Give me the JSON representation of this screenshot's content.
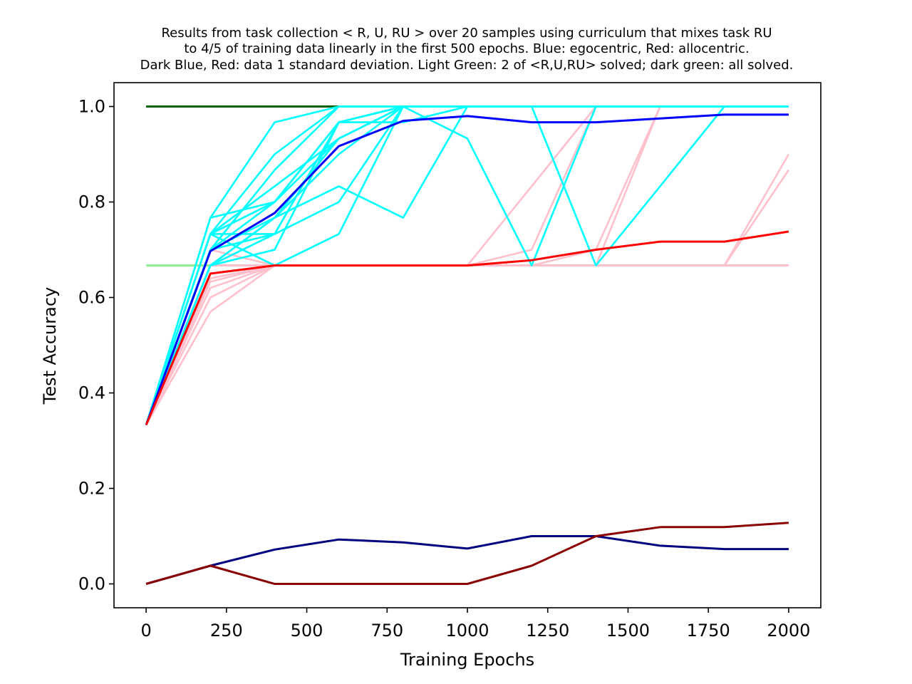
{
  "chart_data": {
    "type": "line",
    "title_lines": [
      "Results from task collection < R, U, RU > over 20 samples using curriculum that mixes task RU",
      "to 4/5 of training data  linearly in the first 500 epochs. Blue: egocentric, Red: allocentric.",
      "Dark Blue, Red: data 1 standard deviation.  Light Green: 2 of <R,U,RU> solved; dark green: all solved."
    ],
    "xlabel": "Training Epochs",
    "ylabel": "Test Accuracy",
    "xlim": [
      -100,
      2100
    ],
    "ylim": [
      -0.05,
      1.05
    ],
    "xticks": [
      0,
      250,
      500,
      750,
      1000,
      1250,
      1500,
      1750,
      2000
    ],
    "xtick_labels": [
      "0",
      "250",
      "500",
      "750",
      "1000",
      "1250",
      "1500",
      "1750",
      "2000"
    ],
    "yticks": [
      0.0,
      0.2,
      0.4,
      0.6,
      0.8,
      1.0
    ],
    "ytick_labels": [
      "0.0",
      "0.2",
      "0.4",
      "0.6",
      "0.8",
      "1.0"
    ],
    "grid": false,
    "x": [
      0,
      200,
      400,
      600,
      800,
      1000,
      1200,
      1400,
      1600,
      1800,
      2000
    ],
    "colors": {
      "all_solved": "#006400",
      "two_solved": "#90ee90",
      "allocentric_sample": "#ffc0cb",
      "egocentric_sample": "#00ffff",
      "egocentric_mean": "#0000ff",
      "allocentric_mean": "#ff0000",
      "egocentric_std": "#000080",
      "allocentric_std": "#8b0000"
    },
    "reference_lines": [
      {
        "color_key": "all_solved",
        "x": [
          0,
          600
        ],
        "y": [
          1.0,
          1.0
        ]
      },
      {
        "color_key": "two_solved",
        "x": [
          0,
          200
        ],
        "y": [
          0.667,
          0.667
        ]
      }
    ],
    "allocentric_samples": [
      [
        0.333,
        0.57,
        0.667,
        0.667,
        0.667,
        0.667,
        0.667,
        0.667,
        0.667,
        0.667,
        0.667
      ],
      [
        0.333,
        0.6,
        0.667,
        0.667,
        0.667,
        0.667,
        0.667,
        0.667,
        0.667,
        0.667,
        0.667
      ],
      [
        0.333,
        0.62,
        0.667,
        0.667,
        0.667,
        0.667,
        0.667,
        0.667,
        0.667,
        0.667,
        0.667
      ],
      [
        0.333,
        0.633,
        0.667,
        0.667,
        0.667,
        0.667,
        0.667,
        0.667,
        0.667,
        0.667,
        0.667
      ],
      [
        0.333,
        0.64,
        0.667,
        0.667,
        0.667,
        0.667,
        0.667,
        0.667,
        0.667,
        0.667,
        0.667
      ],
      [
        0.333,
        0.65,
        0.667,
        0.667,
        0.667,
        0.667,
        0.667,
        0.667,
        0.667,
        0.667,
        0.667
      ],
      [
        0.333,
        0.667,
        0.667,
        0.667,
        0.667,
        0.667,
        0.667,
        0.667,
        0.667,
        0.667,
        0.667
      ],
      [
        0.333,
        0.7,
        0.667,
        0.667,
        0.667,
        0.667,
        0.667,
        0.667,
        0.667,
        0.667,
        0.667
      ],
      [
        0.333,
        0.667,
        0.667,
        0.667,
        0.667,
        0.667,
        0.667,
        0.667,
        0.667,
        0.667,
        0.9
      ],
      [
        0.333,
        0.667,
        0.667,
        0.667,
        0.667,
        0.667,
        0.667,
        0.667,
        0.667,
        0.667,
        0.867
      ],
      [
        0.333,
        0.667,
        0.667,
        0.667,
        0.667,
        0.667,
        0.667,
        0.667,
        1.0,
        1.0,
        1.0
      ],
      [
        0.333,
        0.667,
        0.667,
        0.667,
        0.667,
        0.667,
        0.7,
        1.0,
        1.0,
        1.0,
        1.0
      ],
      [
        0.333,
        0.667,
        0.667,
        0.667,
        0.667,
        0.667,
        0.833,
        1.0,
        1.0,
        1.0,
        1.0
      ],
      [
        0.333,
        0.667,
        0.667,
        0.667,
        0.667,
        0.667,
        0.667,
        0.7,
        1.0,
        1.0,
        1.0
      ]
    ],
    "egocentric_samples": [
      [
        0.333,
        0.767,
        0.967,
        1.0,
        1.0,
        1.0,
        1.0,
        1.0,
        1.0,
        1.0,
        1.0
      ],
      [
        0.333,
        0.733,
        0.9,
        1.0,
        1.0,
        1.0,
        1.0,
        1.0,
        1.0,
        1.0,
        1.0
      ],
      [
        0.333,
        0.7,
        0.867,
        1.0,
        1.0,
        1.0,
        1.0,
        1.0,
        1.0,
        1.0,
        1.0
      ],
      [
        0.333,
        0.767,
        0.8,
        0.967,
        1.0,
        1.0,
        1.0,
        1.0,
        1.0,
        1.0,
        1.0
      ],
      [
        0.333,
        0.733,
        0.833,
        0.933,
        1.0,
        1.0,
        1.0,
        1.0,
        1.0,
        1.0,
        1.0
      ],
      [
        0.333,
        0.733,
        0.8,
        0.933,
        1.0,
        1.0,
        1.0,
        1.0,
        1.0,
        1.0,
        1.0
      ],
      [
        0.333,
        0.7,
        0.767,
        0.9,
        1.0,
        1.0,
        1.0,
        1.0,
        1.0,
        1.0,
        1.0
      ],
      [
        0.333,
        0.667,
        0.7,
        0.967,
        1.0,
        1.0,
        1.0,
        1.0,
        1.0,
        1.0,
        1.0
      ],
      [
        0.333,
        0.7,
        0.733,
        0.967,
        1.0,
        1.0,
        1.0,
        1.0,
        1.0,
        1.0,
        1.0
      ],
      [
        0.333,
        0.667,
        0.767,
        0.833,
        0.767,
        1.0,
        1.0,
        1.0,
        1.0,
        1.0,
        1.0
      ],
      [
        0.333,
        0.733,
        0.733,
        0.8,
        1.0,
        1.0,
        1.0,
        1.0,
        1.0,
        1.0,
        1.0
      ],
      [
        0.333,
        0.733,
        0.667,
        0.733,
        1.0,
        1.0,
        1.0,
        1.0,
        1.0,
        1.0,
        1.0
      ],
      [
        0.333,
        0.7,
        0.8,
        0.967,
        0.967,
        1.0,
        1.0,
        1.0,
        1.0,
        1.0,
        1.0
      ],
      [
        0.333,
        0.667,
        0.767,
        0.933,
        1.0,
        0.933,
        0.667,
        1.0,
        1.0,
        1.0,
        1.0
      ],
      [
        0.333,
        0.667,
        0.733,
        0.967,
        1.0,
        1.0,
        1.0,
        0.667,
        0.833,
        1.0,
        1.0
      ]
    ],
    "series": [
      {
        "role": "egocentric_mean",
        "color_key": "egocentric_mean",
        "values": [
          0.333,
          0.697,
          0.777,
          0.917,
          0.97,
          0.98,
          0.967,
          0.967,
          0.975,
          0.983,
          0.983
        ]
      },
      {
        "role": "allocentric_mean",
        "color_key": "allocentric_mean",
        "values": [
          0.333,
          0.65,
          0.667,
          0.667,
          0.667,
          0.667,
          0.678,
          0.7,
          0.717,
          0.717,
          0.738
        ]
      },
      {
        "role": "egocentric_std",
        "color_key": "egocentric_std",
        "values": [
          0.0,
          0.038,
          0.072,
          0.093,
          0.087,
          0.074,
          0.1,
          0.1,
          0.08,
          0.073,
          0.073
        ]
      },
      {
        "role": "allocentric_std",
        "color_key": "allocentric_std",
        "values": [
          0.0,
          0.038,
          0.0,
          0.0,
          0.0,
          0.0,
          0.038,
          0.1,
          0.119,
          0.119,
          0.128
        ]
      }
    ]
  }
}
